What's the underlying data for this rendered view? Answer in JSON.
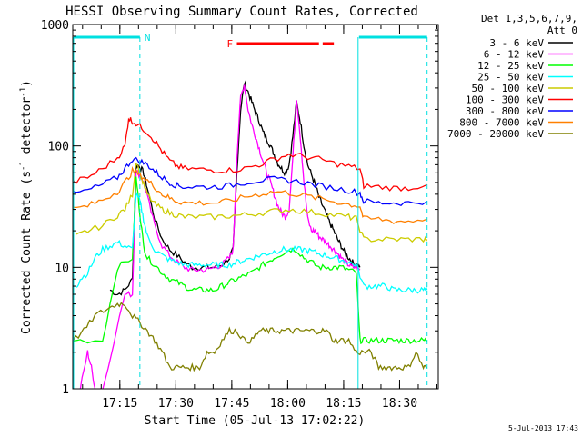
{
  "chart_data": {
    "type": "line",
    "title": "HESSI Observing Summary Count Rates, Corrected",
    "xlabel": "Start Time (05-Jul-13 17:02:22)",
    "ylabel": "Corrected Count Rate (s",
    "ylabel_sup1": "-1",
    "ylabel_mid": " detector",
    "ylabel_sup2": "-1",
    "ylabel_end": ")",
    "timestamp": "5-Jul-2013 17:43",
    "x_start_minutes": 0,
    "xlim_minutes": [
      0,
      98
    ],
    "ylim": [
      1,
      1000
    ],
    "y_scale": "log",
    "xticks": [
      {
        "minute": 12.63,
        "label": "17:15"
      },
      {
        "minute": 27.63,
        "label": "17:30"
      },
      {
        "minute": 42.63,
        "label": "17:45"
      },
      {
        "minute": 57.63,
        "label": "18:00"
      },
      {
        "minute": 72.63,
        "label": "18:15"
      },
      {
        "minute": 87.63,
        "label": "18:30"
      }
    ],
    "yticks": [
      {
        "value": 1,
        "label": "1"
      },
      {
        "value": 10,
        "label": "10"
      },
      {
        "value": 100,
        "label": "100"
      },
      {
        "value": 1000,
        "label": "1000"
      }
    ],
    "legend": {
      "placement": "outside-right",
      "header1": "Det 1,3,5,6,7,9,",
      "header2": "Att 0",
      "entries": [
        {
          "label": "3 - 6 keV",
          "color": "#000000"
        },
        {
          "label": "6 - 12 keV",
          "color": "#ff00ff"
        },
        {
          "label": "12 - 25 keV",
          "color": "#00ff00"
        },
        {
          "label": "25 - 50 keV",
          "color": "#00ffff"
        },
        {
          "label": "50 - 100 keV",
          "color": "#cccc00"
        },
        {
          "label": "100 - 300 keV",
          "color": "#ff0000"
        },
        {
          "label": "300 - 800 keV",
          "color": "#0000ff"
        },
        {
          "label": "800 - 7000 keV",
          "color": "#ff8000"
        },
        {
          "label": "7000 - 20000 keV",
          "color": "#808000"
        }
      ]
    },
    "annotations": {
      "night_label": "N",
      "night_color": "#00e0e0",
      "night_bars": [
        [
          0,
          18
        ],
        [
          76.5,
          95
        ]
      ],
      "night_dashes": [
        18,
        95
      ],
      "night_solid": [
        76.5
      ],
      "flare_label": "F",
      "flare_color": "#ff0000",
      "flare_bars": [
        [
          44,
          66
        ],
        [
          67,
          70
        ]
      ]
    },
    "series": [
      {
        "name": "3 - 6 keV",
        "color": "#000000",
        "x": [
          10,
          12,
          14,
          16,
          17,
          18,
          19,
          20,
          22,
          24,
          26,
          28,
          30,
          32,
          34,
          36,
          38,
          40,
          42,
          43,
          44,
          45,
          46,
          47,
          48,
          49,
          50,
          51,
          52,
          53,
          54,
          55,
          56,
          57,
          58,
          59,
          60,
          61,
          62,
          63,
          64,
          65,
          66,
          67,
          68,
          69,
          70,
          71,
          72,
          73,
          74,
          75,
          76,
          77
        ],
        "y": [
          6.5,
          6,
          6.5,
          8,
          70,
          68,
          60,
          45,
          25,
          17,
          14,
          12.5,
          11,
          10,
          10,
          10,
          10,
          10.5,
          12,
          14,
          60,
          200,
          330,
          280,
          230,
          190,
          160,
          130,
          115,
          100,
          85,
          72,
          65,
          60,
          70,
          120,
          230,
          160,
          100,
          70,
          58,
          48,
          38,
          32,
          27,
          23,
          20,
          17,
          15,
          13,
          12,
          11,
          10.5,
          10
        ]
      },
      {
        "name": "6 - 12 keV",
        "color": "#ff00ff",
        "x": [
          2,
          4,
          5,
          6,
          8,
          14,
          16,
          17,
          18,
          19,
          20,
          22,
          24,
          26,
          28,
          30,
          32,
          34,
          36,
          38,
          40,
          42,
          43,
          44,
          45,
          46,
          47,
          48,
          49,
          50,
          51,
          52,
          53,
          54,
          55,
          56,
          57,
          58,
          59,
          60,
          61,
          62,
          63,
          64,
          65,
          66,
          67,
          68,
          69,
          70,
          71,
          72,
          73,
          74,
          75,
          76,
          77
        ],
        "y": [
          1,
          2,
          1.5,
          1,
          1,
          6,
          6,
          62,
          58,
          50,
          38,
          22,
          15,
          12.5,
          11,
          10,
          9.5,
          9.5,
          9.5,
          10,
          10.5,
          12,
          14,
          80,
          250,
          320,
          200,
          150,
          120,
          95,
          75,
          60,
          50,
          40,
          32,
          28,
          26,
          30,
          80,
          250,
          120,
          50,
          25,
          20,
          20,
          18,
          17,
          16,
          15,
          14,
          13,
          12,
          11,
          10.5,
          10,
          10,
          9.5
        ]
      },
      {
        "name": "12 - 25 keV",
        "color": "#00ff00",
        "x": [
          0,
          8,
          12,
          16,
          17,
          18,
          19,
          20,
          22,
          24,
          26,
          28,
          30,
          32,
          34,
          36,
          38,
          40,
          42,
          44,
          46,
          48,
          50,
          52,
          54,
          56,
          58,
          60,
          62,
          64,
          66,
          68,
          70,
          72,
          74,
          76,
          77,
          78,
          80,
          82,
          84,
          86,
          88,
          90,
          92,
          94,
          95
        ],
        "y": [
          2.5,
          2.5,
          10,
          12,
          55,
          28,
          15,
          12,
          10.5,
          9,
          8,
          7.5,
          7,
          6.5,
          6.5,
          6.5,
          6.5,
          7,
          7.5,
          8,
          8.5,
          9,
          10,
          11,
          12,
          13,
          14,
          14,
          12,
          11,
          10,
          10,
          10,
          10,
          9.5,
          9,
          2.5,
          2.5,
          2.5,
          2.5,
          2.5,
          2.5,
          2.5,
          2.5,
          2.5,
          2.5,
          2.5
        ]
      },
      {
        "name": "25 - 50 keV",
        "color": "#00ffff",
        "x": [
          1,
          2,
          4,
          6,
          8,
          10,
          12,
          14,
          16,
          17,
          18,
          19,
          20,
          22,
          24,
          26,
          28,
          30,
          32,
          34,
          36,
          38,
          40,
          42,
          44,
          46,
          48,
          50,
          52,
          54,
          56,
          58,
          60,
          62,
          64,
          66,
          68,
          70,
          72,
          74,
          76,
          78,
          80,
          82,
          84,
          86,
          88,
          90,
          92,
          94,
          95
        ],
        "y": [
          7,
          8,
          9,
          12,
          14,
          15,
          16,
          15,
          14,
          40,
          35,
          25,
          18,
          14,
          12.5,
          11.5,
          11,
          10.5,
          10.5,
          10.5,
          10.5,
          10.5,
          10.5,
          10.5,
          11,
          11.5,
          12,
          12.5,
          13,
          13.5,
          14,
          14,
          14,
          14,
          13.5,
          13,
          12.5,
          12,
          11.5,
          11,
          10.5,
          7,
          7,
          7,
          7,
          6.5,
          6.5,
          6.5,
          6.5,
          6.5,
          6.5
        ]
      },
      {
        "name": "50 - 100 keV",
        "color": "#cccc00",
        "x": [
          1,
          4,
          8,
          12,
          14,
          16,
          17,
          18,
          19,
          20,
          22,
          24,
          26,
          28,
          30,
          34,
          38,
          42,
          46,
          50,
          54,
          58,
          62,
          66,
          70,
          74,
          76,
          78,
          82,
          86,
          90,
          94,
          95
        ],
        "y": [
          18,
          20,
          22,
          27,
          30,
          40,
          75,
          60,
          48,
          40,
          33,
          30,
          28,
          27,
          26,
          26,
          26,
          26.5,
          27,
          28,
          29,
          30,
          29,
          28,
          27,
          26,
          25,
          17,
          17,
          17,
          17,
          17,
          17
        ]
      },
      {
        "name": "100 - 300 keV",
        "color": "#ff0000",
        "x": [
          0,
          4,
          8,
          12,
          14,
          15,
          16,
          18,
          20,
          22,
          24,
          26,
          28,
          30,
          34,
          38,
          42,
          46,
          50,
          54,
          58,
          62,
          66,
          70,
          74,
          77,
          78,
          82,
          86,
          90,
          95
        ],
        "y": [
          50,
          55,
          65,
          80,
          100,
          170,
          160,
          145,
          130,
          110,
          90,
          75,
          68,
          65,
          64,
          63,
          63,
          65,
          70,
          78,
          85,
          82,
          78,
          72,
          68,
          65,
          47,
          46,
          45,
          45,
          48
        ]
      },
      {
        "name": "300 - 800 keV",
        "color": "#0000ff",
        "x": [
          0,
          4,
          8,
          12,
          14,
          16,
          18,
          20,
          22,
          24,
          26,
          28,
          30,
          34,
          38,
          42,
          46,
          50,
          54,
          58,
          62,
          66,
          70,
          74,
          77,
          78,
          82,
          86,
          90,
          95
        ],
        "y": [
          40,
          43,
          48,
          55,
          65,
          78,
          75,
          70,
          62,
          55,
          50,
          47,
          46,
          46,
          46,
          47,
          50,
          52,
          53,
          52,
          50,
          47,
          45,
          43,
          41,
          35,
          34,
          34,
          34,
          35
        ]
      },
      {
        "name": "800 - 7000 keV",
        "color": "#ff8000",
        "x": [
          0,
          4,
          8,
          12,
          14,
          16,
          18,
          20,
          22,
          24,
          26,
          28,
          30,
          34,
          38,
          42,
          46,
          50,
          54,
          58,
          62,
          66,
          70,
          74,
          77,
          78,
          82,
          86,
          90,
          95
        ],
        "y": [
          30,
          32,
          36,
          42,
          50,
          62,
          58,
          52,
          46,
          40,
          37,
          35,
          34,
          34,
          34,
          35,
          38,
          40,
          42,
          41,
          39,
          37,
          35,
          33,
          32,
          25,
          25,
          24,
          24,
          25
        ]
      },
      {
        "name": "7000 - 20000 keV",
        "color": "#808000",
        "x": [
          0,
          3,
          6,
          9,
          12,
          14,
          16,
          18,
          20,
          22,
          24,
          26,
          28,
          30,
          32,
          34,
          36,
          38,
          40,
          42,
          44,
          46,
          48,
          50,
          52,
          54,
          56,
          58,
          60,
          62,
          64,
          66,
          68,
          70,
          72,
          74,
          76,
          78,
          80,
          82,
          84,
          86,
          88,
          90,
          92,
          94,
          95
        ],
        "y": [
          2.5,
          3,
          4,
          4.5,
          5,
          5,
          4,
          3.5,
          3,
          2.5,
          2,
          1.5,
          1.5,
          1.5,
          1.5,
          1.5,
          2,
          2,
          2.5,
          3,
          3,
          2.5,
          2.5,
          3,
          3,
          3,
          3,
          3,
          3,
          3,
          3,
          3,
          3,
          2.5,
          2.5,
          2.5,
          2,
          2,
          2,
          1.5,
          1.5,
          1.5,
          1.5,
          1.5,
          2,
          1.5,
          1.5
        ]
      }
    ]
  }
}
